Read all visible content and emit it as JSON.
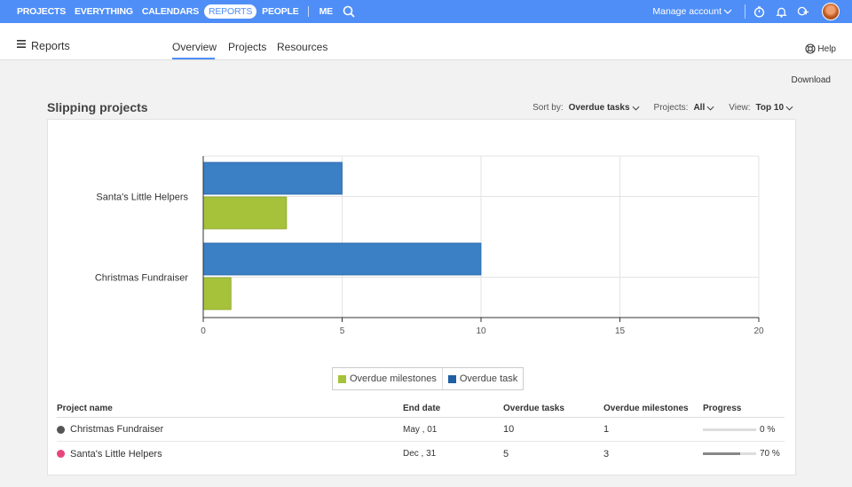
{
  "nav": {
    "items": [
      "PROJECTS",
      "EVERYTHING",
      "CALENDARS",
      "REPORTS",
      "PEOPLE"
    ],
    "active_index": 3,
    "me": "ME",
    "manage_account": "Manage account"
  },
  "header": {
    "title": "Reports",
    "tabs": [
      "Overview",
      "Projects",
      "Resources"
    ],
    "active_tab": 0,
    "help": "Help"
  },
  "download": "Download",
  "section_title": "Slipping projects",
  "controls": {
    "sort_label": "Sort by:",
    "sort_value": "Overdue tasks",
    "projects_label": "Projects:",
    "projects_value": "All",
    "view_label": "View:",
    "view_value": "Top 10"
  },
  "chart_data": {
    "type": "bar",
    "orientation": "horizontal",
    "categories": [
      "Santa's Little Helpers",
      "Christmas Fundraiser"
    ],
    "series": [
      {
        "name": "Overdue task",
        "values": [
          5,
          10
        ],
        "color": "#3b7fc4"
      },
      {
        "name": "Overdue milestones",
        "values": [
          3,
          1
        ],
        "color": "#a5c23a"
      }
    ],
    "xlim": [
      0,
      20
    ],
    "xticks": [
      0,
      5,
      10,
      15,
      20
    ],
    "grid": true,
    "legend": [
      "Overdue milestones",
      "Overdue task"
    ],
    "legend_placement": "bottom-center"
  },
  "table": {
    "headers": [
      "Project name",
      "End date",
      "Overdue tasks",
      "Overdue milestones",
      "Progress"
    ],
    "rows": [
      {
        "name": "Christmas Fundraiser",
        "dot_color": "#555555",
        "end_date": "May , 01",
        "overdue_tasks": "10",
        "overdue_milestones": "1",
        "progress": 0,
        "progress_text": "0 %"
      },
      {
        "name": "Santa's Little Helpers",
        "dot_color": "#e8457a",
        "end_date": "Dec , 31",
        "overdue_tasks": "5",
        "overdue_milestones": "3",
        "progress": 70,
        "progress_text": "70 %"
      }
    ]
  }
}
